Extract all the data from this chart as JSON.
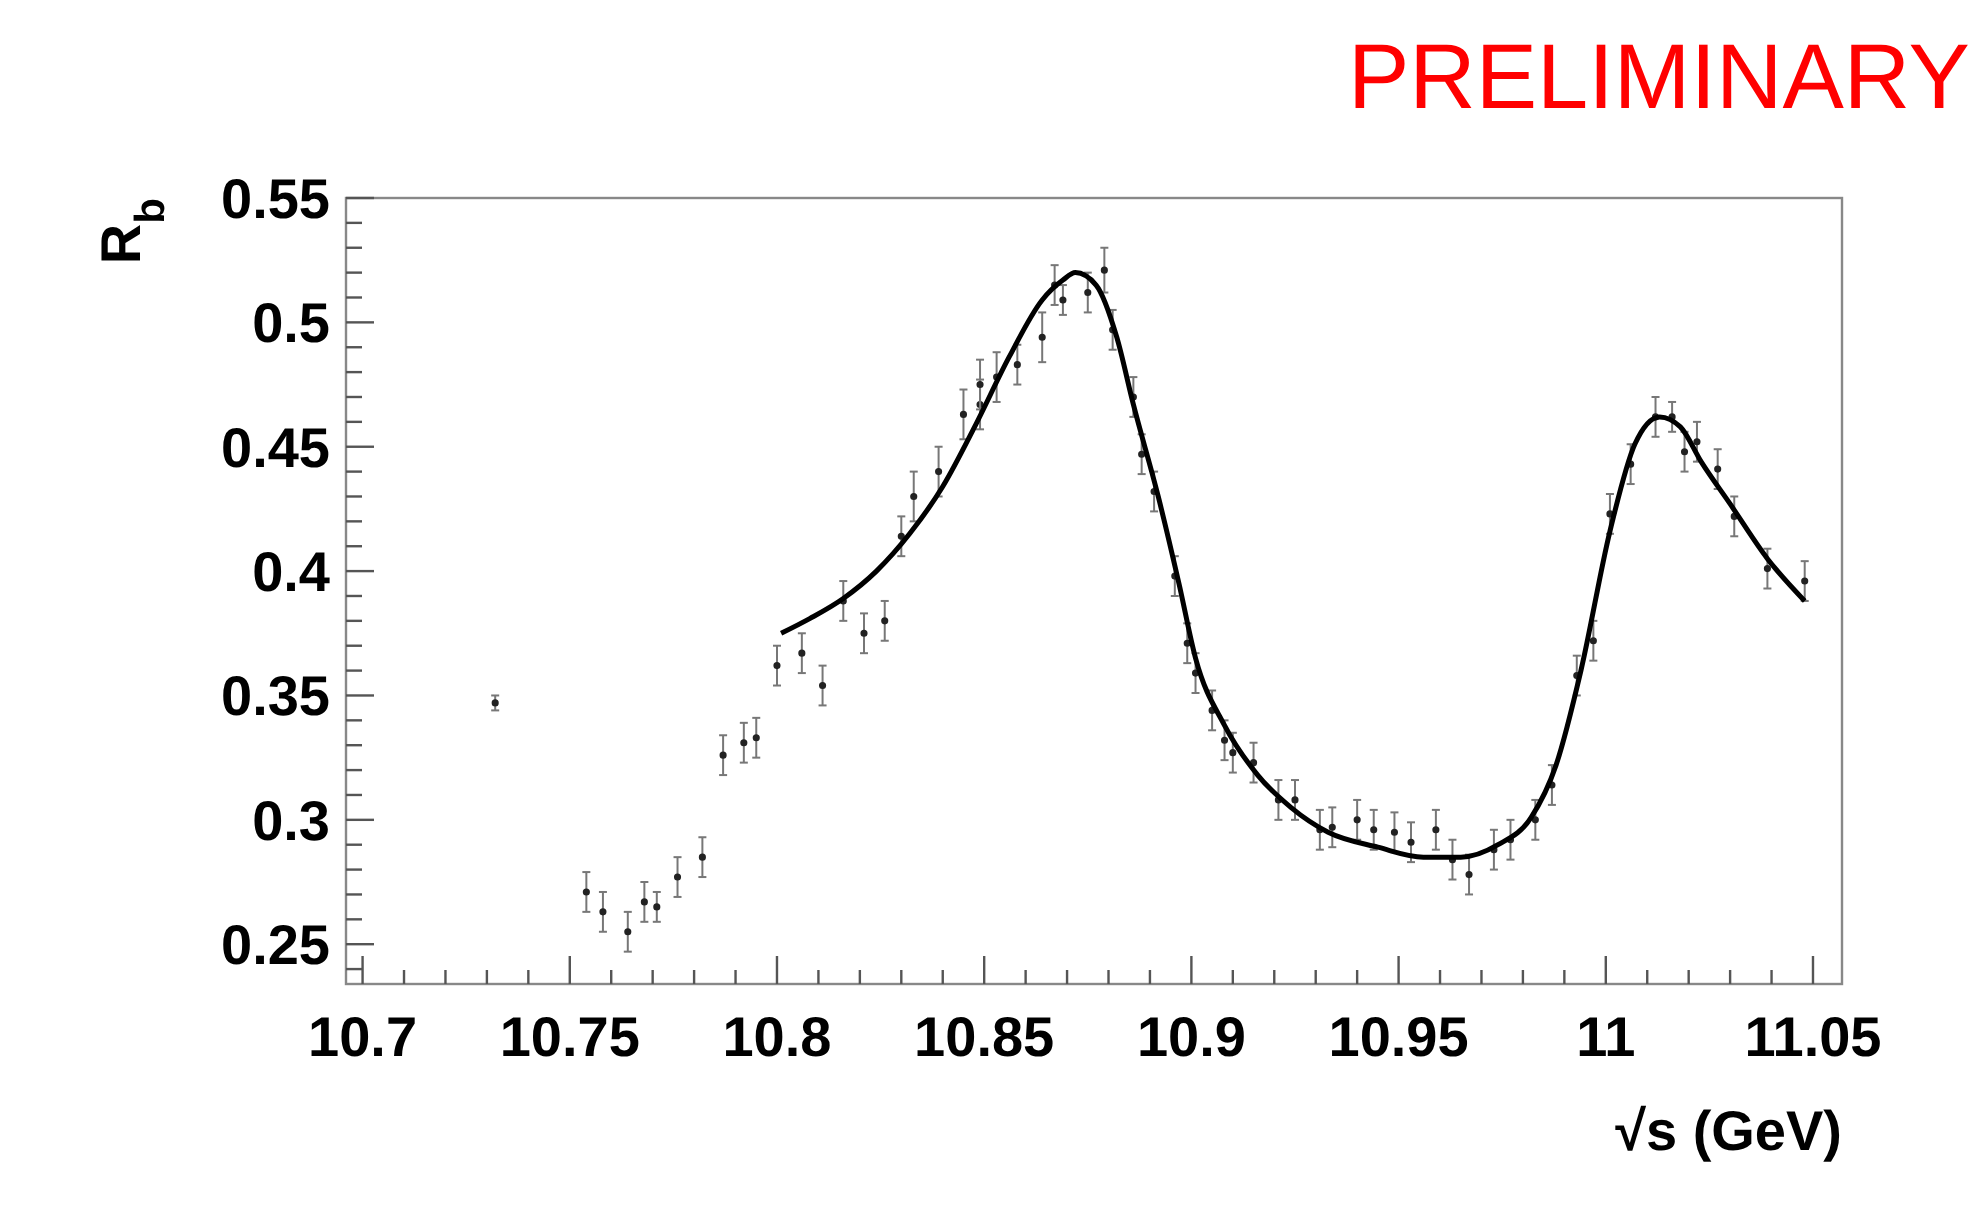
{
  "chart_data": {
    "type": "scatter",
    "xlabel": "√s (GeV)",
    "ylabel": "R$_{b}$",
    "annotations": [
      "PRELIMINARY"
    ],
    "xlim": [
      10.696,
      11.057
    ],
    "ylim": [
      0.234,
      0.55
    ],
    "xticks": [
      10.7,
      {
        "value": 10.71,
        "label": null
      },
      {
        "value": 10.72,
        "label": null
      },
      {
        "value": 10.73,
        "label": null
      },
      {
        "value": 10.74,
        "label": null
      },
      10.75,
      {
        "value": 10.76,
        "label": null
      },
      {
        "value": 10.77,
        "label": null
      },
      {
        "value": 10.78,
        "label": null
      },
      {
        "value": 10.79,
        "label": null
      },
      10.8,
      {
        "value": 10.81,
        "label": null
      },
      {
        "value": 10.82,
        "label": null
      },
      {
        "value": 10.83,
        "label": null
      },
      {
        "value": 10.84,
        "label": null
      },
      10.85,
      {
        "value": 10.86,
        "label": null
      },
      {
        "value": 10.87,
        "label": null
      },
      {
        "value": 10.88,
        "label": null
      },
      {
        "value": 10.89,
        "label": null
      },
      10.9,
      {
        "value": 10.91,
        "label": null
      },
      {
        "value": 10.92,
        "label": null
      },
      {
        "value": 10.93,
        "label": null
      },
      {
        "value": 10.94,
        "label": null
      },
      10.95,
      {
        "value": 10.96,
        "label": null
      },
      {
        "value": 10.97,
        "label": null
      },
      {
        "value": 10.98,
        "label": null
      },
      {
        "value": 10.99,
        "label": null
      },
      11,
      {
        "value": 11.01,
        "label": null
      },
      {
        "value": 11.02,
        "label": null
      },
      {
        "value": 11.03,
        "label": null
      },
      {
        "value": 11.04,
        "label": null
      },
      11.05
    ],
    "yticks": [
      {
        "value": 0.24,
        "label": null
      },
      0.25,
      {
        "value": 0.26,
        "label": null
      },
      {
        "value": 0.27,
        "label": null
      },
      {
        "value": 0.28,
        "label": null
      },
      {
        "value": 0.29,
        "label": null
      },
      0.3,
      {
        "value": 0.31,
        "label": null
      },
      {
        "value": 0.32,
        "label": null
      },
      {
        "value": 0.33,
        "label": null
      },
      {
        "value": 0.34,
        "label": null
      },
      0.35,
      {
        "value": 0.36,
        "label": null
      },
      {
        "value": 0.37,
        "label": null
      },
      {
        "value": 0.38,
        "label": null
      },
      {
        "value": 0.39,
        "label": null
      },
      0.4,
      {
        "value": 0.41,
        "label": null
      },
      {
        "value": 0.42,
        "label": null
      },
      {
        "value": 0.43,
        "label": null
      },
      {
        "value": 0.44,
        "label": null
      },
      0.45,
      {
        "value": 0.46,
        "label": null
      },
      {
        "value": 0.47,
        "label": null
      },
      {
        "value": 0.48,
        "label": null
      },
      {
        "value": 0.49,
        "label": null
      },
      0.5,
      {
        "value": 0.51,
        "label": null
      },
      {
        "value": 0.52,
        "label": null
      },
      {
        "value": 0.53,
        "label": null
      },
      {
        "value": 0.54,
        "label": null
      },
      0.55
    ],
    "grid": false,
    "marker": "circle",
    "series": [
      {
        "color": "#222222",
        "x": [
          10.732,
          10.754,
          10.758,
          10.764,
          10.768,
          10.771,
          10.776,
          10.782,
          10.787,
          10.792,
          10.795,
          10.8,
          10.806,
          10.811,
          10.816,
          10.821,
          10.826,
          10.83,
          10.833,
          10.839,
          10.845,
          10.849,
          10.849,
          10.853,
          10.858,
          10.864,
          10.867,
          10.869,
          10.875,
          10.879,
          10.881,
          10.886,
          10.888,
          10.891,
          10.896,
          10.899,
          10.901,
          10.905,
          10.908,
          10.91,
          10.915,
          10.921,
          10.925,
          10.931,
          10.934,
          10.94,
          10.944,
          10.949,
          10.953,
          10.959,
          10.963,
          10.967,
          10.973,
          10.977,
          10.983,
          10.987,
          10.993,
          10.997,
          11.001,
          11.006,
          11.012,
          11.016,
          11.019,
          11.022,
          11.027,
          11.031,
          11.039,
          11.048
        ],
        "values": [
          0.347,
          0.271,
          0.263,
          0.255,
          0.267,
          0.265,
          0.277,
          0.285,
          0.326,
          0.331,
          0.333,
          0.362,
          0.367,
          0.354,
          0.388,
          0.375,
          0.38,
          0.414,
          0.43,
          0.44,
          0.463,
          0.467,
          0.475,
          0.478,
          0.483,
          0.494,
          0.515,
          0.509,
          0.512,
          0.521,
          0.497,
          0.47,
          0.447,
          0.432,
          0.398,
          0.371,
          0.359,
          0.344,
          0.332,
          0.327,
          0.323,
          0.308,
          0.308,
          0.296,
          0.297,
          0.3,
          0.296,
          0.295,
          0.291,
          0.296,
          0.284,
          0.278,
          0.288,
          0.292,
          0.3,
          0.314,
          0.358,
          0.372,
          0.423,
          0.443,
          0.462,
          0.462,
          0.448,
          0.452,
          0.441,
          0.422,
          0.401,
          0.396
        ],
        "errors": [
          0.003,
          0.008,
          0.008,
          0.008,
          0.008,
          0.006,
          0.008,
          0.008,
          0.008,
          0.008,
          0.008,
          0.008,
          0.008,
          0.008,
          0.008,
          0.008,
          0.008,
          0.008,
          0.01,
          0.01,
          0.01,
          0.01,
          0.01,
          0.01,
          0.008,
          0.01,
          0.008,
          0.006,
          0.008,
          0.009,
          0.008,
          0.008,
          0.008,
          0.008,
          0.008,
          0.008,
          0.008,
          0.008,
          0.008,
          0.008,
          0.008,
          0.008,
          0.008,
          0.008,
          0.008,
          0.008,
          0.008,
          0.008,
          0.008,
          0.008,
          0.008,
          0.008,
          0.008,
          0.008,
          0.008,
          0.008,
          0.008,
          0.008,
          0.008,
          0.008,
          0.008,
          0.006,
          0.008,
          0.008,
          0.008,
          0.008,
          0.008,
          0.008
        ]
      },
      {
        "type": "line",
        "color": "#000000",
        "marker": "none",
        "line_style": "solid",
        "x": [
          10.801,
          10.808,
          10.816,
          10.824,
          10.832,
          10.84,
          10.848,
          10.856,
          10.864,
          10.869,
          10.872,
          10.877,
          10.882,
          10.886,
          10.892,
          10.897,
          10.901,
          10.908,
          10.916,
          10.924,
          10.933,
          10.945,
          10.956,
          10.965,
          10.974,
          10.982,
          10.988,
          10.994,
          11.001,
          11.007,
          11.013,
          11.018,
          11.023,
          11.03,
          11.039,
          11.048
        ],
        "values": [
          0.375,
          0.381,
          0.389,
          0.4,
          0.415,
          0.434,
          0.459,
          0.486,
          0.509,
          0.517,
          0.52,
          0.515,
          0.494,
          0.467,
          0.43,
          0.395,
          0.365,
          0.338,
          0.318,
          0.305,
          0.295,
          0.289,
          0.285,
          0.285,
          0.29,
          0.301,
          0.322,
          0.36,
          0.416,
          0.451,
          0.462,
          0.458,
          0.444,
          0.427,
          0.405,
          0.388
        ]
      }
    ]
  }
}
